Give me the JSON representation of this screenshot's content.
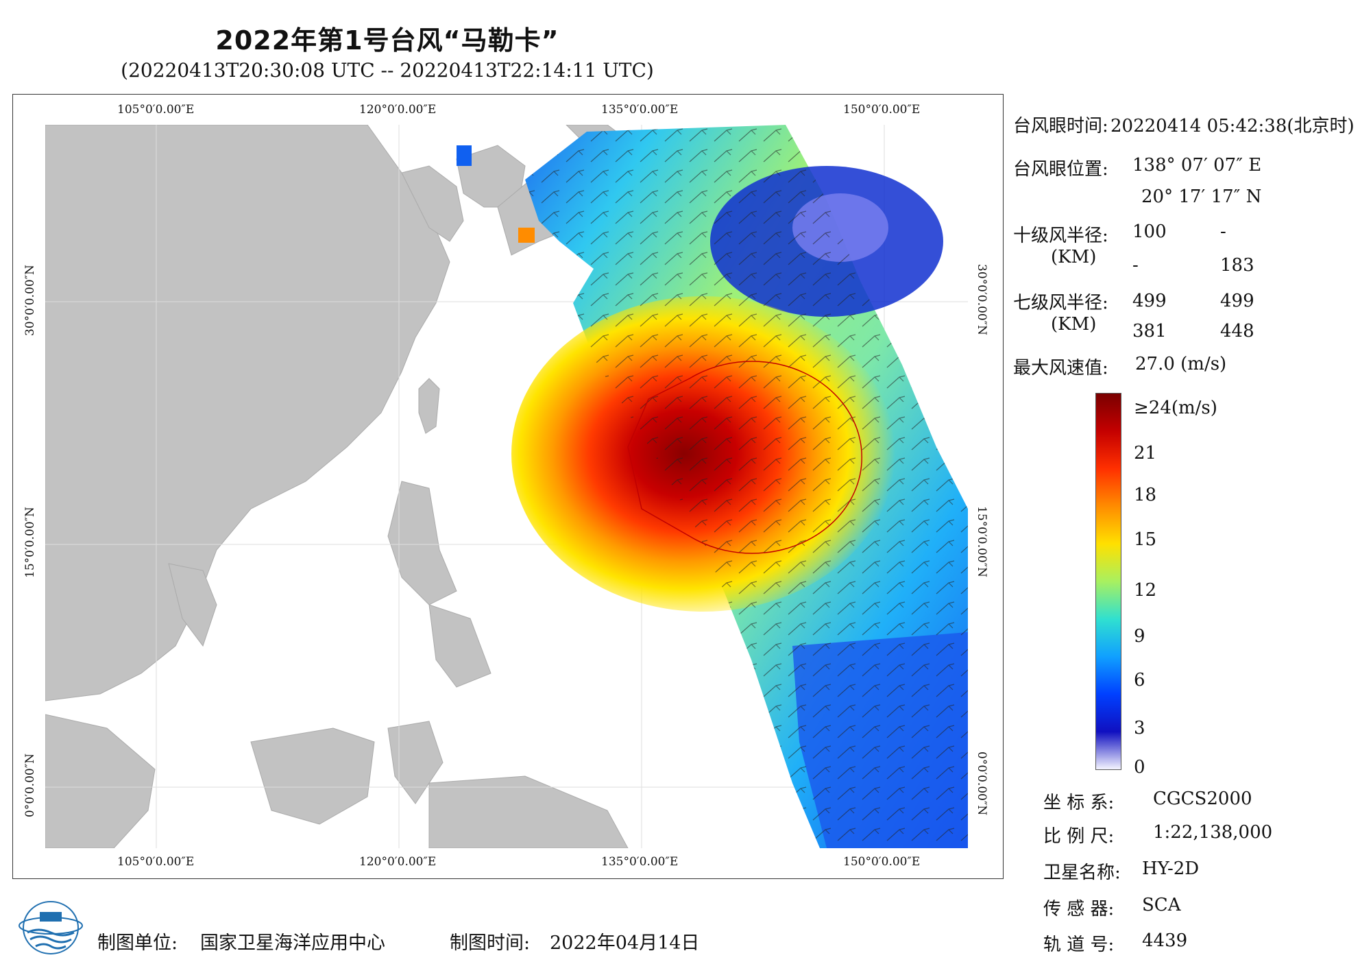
{
  "title": "2022年第1号台风“马勒卡”",
  "subtitle": "(20220413T20:30:08 UTC -- 20220413T22:14:11 UTC)",
  "map": {
    "lon_labels": [
      "105°0′0.00″E",
      "120°0′0.00″E",
      "135°0′0.00″E",
      "150°0′0.00″E"
    ],
    "lat_labels": [
      "30°0′0.00″N",
      "15°0′0.00″N",
      "0°0′0.00″N"
    ]
  },
  "info": {
    "eye_time_label": "台风眼时间:",
    "eye_time_value": "20220414 05:42:38(北京时)",
    "eye_pos_label": "台风眼位置:",
    "eye_lon": "138° 07′ 07″ E",
    "eye_lat": "20° 17′ 17″ N",
    "r10_label": "十级风半径:",
    "r10_unit": "(KM)",
    "r10_values": [
      "100",
      "-",
      "-",
      "183"
    ],
    "r7_label": "七级风半径:",
    "r7_unit": "(KM)",
    "r7_values": [
      "499",
      "499",
      "381",
      "448"
    ],
    "max_wind_label": "最大风速值:",
    "max_wind_value": "27.0 (m/s)"
  },
  "legend": {
    "labels": [
      "≥24(m/s)",
      "21",
      "18",
      "15",
      "12",
      "9",
      "6",
      "3",
      "0"
    ],
    "colors": [
      "#7a0000",
      "#c40000",
      "#ff3000",
      "#ff8c00",
      "#ffe000",
      "#a8f060",
      "#30e0d0",
      "#10a0ff",
      "#0040ff",
      "#1010c0",
      "#f4f4ff"
    ]
  },
  "meta": {
    "crs_label": "坐 标 系:",
    "crs_value": "CGCS2000",
    "scale_label": "比 例 尺:",
    "scale_value": "1:22,138,000",
    "satellite_label": "卫星名称:",
    "satellite_value": "HY-2D",
    "sensor_label": "传 感 器:",
    "sensor_value": "SCA",
    "orbit_label": "轨 道 号:",
    "orbit_value": "4439"
  },
  "footer": {
    "unit_label": "制图单位:",
    "unit_value": "国家卫星海洋应用中心",
    "time_label": "制图时间:",
    "time_value": "2022年04月14日"
  }
}
